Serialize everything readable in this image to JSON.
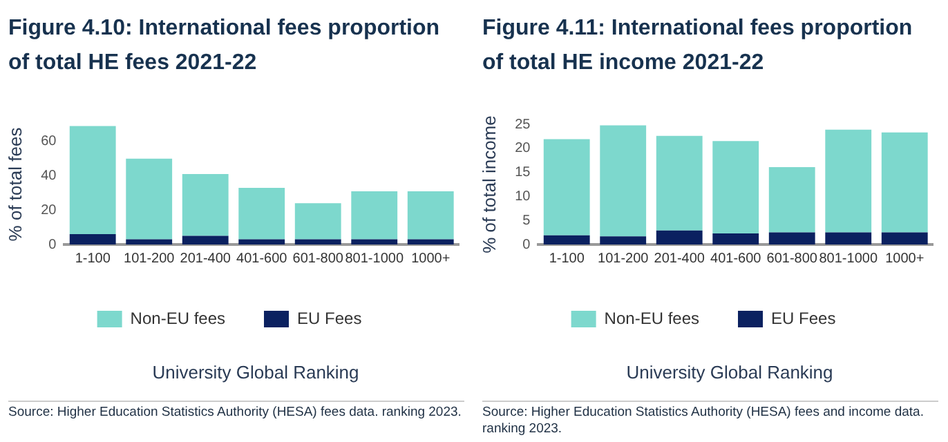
{
  "chart_data": [
    {
      "type": "bar",
      "title": "Figure 4.10: International fees proportion of total HE fees 2021-22",
      "xlabel": "University Global Ranking",
      "ylabel": "% of total fees",
      "categories": [
        "1-100",
        "101-200",
        "201-400",
        "401-600",
        "601-800",
        "801-1000",
        "1000+"
      ],
      "stacked": true,
      "series": [
        {
          "name": "EU Fees",
          "color": "#0b2160",
          "values": [
            6,
            3,
            5,
            3,
            3,
            3,
            3
          ]
        },
        {
          "name": "Non-EU fees",
          "color": "#7dd8cd",
          "values": [
            63,
            47,
            36,
            30,
            21,
            28,
            28
          ]
        }
      ],
      "ylim": [
        0,
        70
      ],
      "yticks": [
        0,
        20,
        40,
        60
      ],
      "grid": false,
      "legend": "bottom",
      "annotations": [
        "Source: Higher Education Statistics Authority (HESA) fees data. ranking 2023."
      ]
    },
    {
      "type": "bar",
      "title": "Figure 4.11: International fees proportion of total HE income 2021-22",
      "xlabel": "University Global Ranking",
      "ylabel": "% of total income",
      "categories": [
        "1-100",
        "101-200",
        "201-400",
        "401-600",
        "601-800",
        "801-1000",
        "1000+"
      ],
      "stacked": true,
      "series": [
        {
          "name": "EU Fees",
          "color": "#0b2160",
          "values": [
            1.9,
            1.7,
            2.9,
            2.3,
            2.5,
            2.5,
            2.5
          ]
        },
        {
          "name": "Non-EU fees",
          "color": "#7dd8cd",
          "values": [
            20.0,
            23.1,
            19.7,
            19.2,
            13.6,
            21.4,
            20.8
          ]
        }
      ],
      "ylim": [
        0,
        25
      ],
      "yticks": [
        0,
        5,
        10,
        15,
        20,
        25
      ],
      "grid": false,
      "legend": "bottom",
      "annotations": [
        "Source: Higher Education Statistics Authority (HESA) fees and income data. ranking 2023."
      ]
    }
  ]
}
